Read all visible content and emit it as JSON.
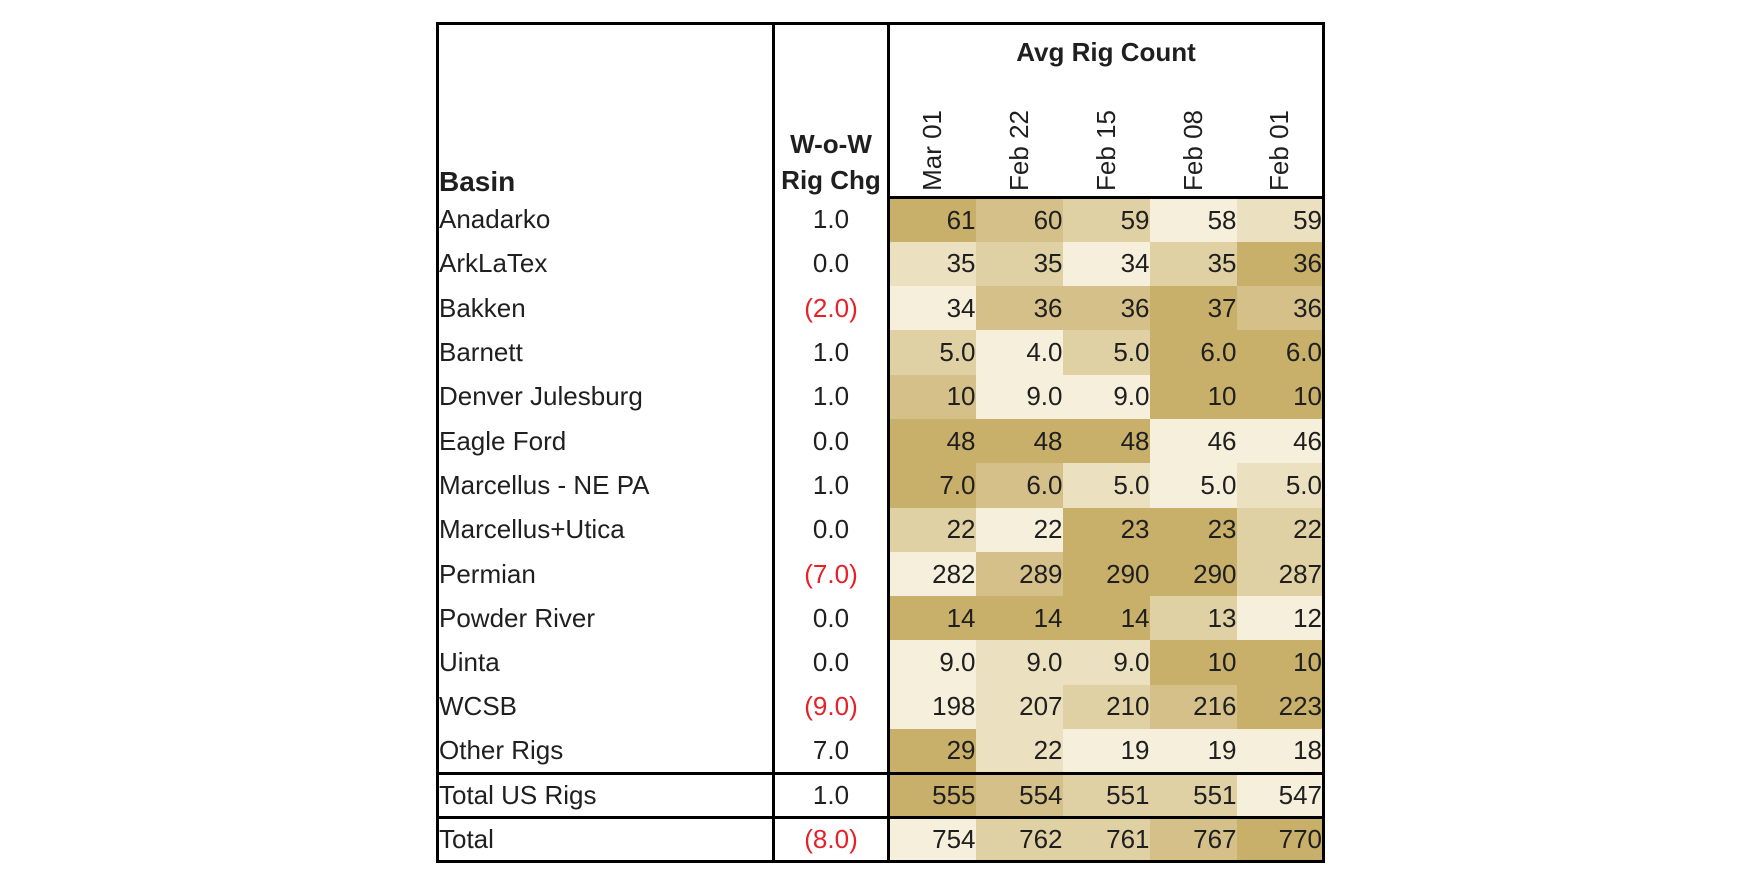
{
  "header": {
    "basin_label": "Basin",
    "change_label_line1": "W-o-W",
    "change_label_line2": "Rig Chg",
    "group_label": "Avg Rig Count",
    "dates": [
      "Mar 01",
      "Feb 22",
      "Feb 15",
      "Feb 08",
      "Feb 01"
    ]
  },
  "rows": [
    {
      "basin": "Anadarko",
      "change": "1.0",
      "negative": false,
      "values": [
        "61",
        "60",
        "59",
        "58",
        "59"
      ],
      "shades": [
        4,
        3,
        2,
        0,
        1
      ]
    },
    {
      "basin": "ArkLaTex",
      "change": "0.0",
      "negative": false,
      "values": [
        "35",
        "35",
        "34",
        "35",
        "36"
      ],
      "shades": [
        1,
        2,
        0,
        2,
        4
      ]
    },
    {
      "basin": "Bakken",
      "change": "(2.0)",
      "negative": true,
      "values": [
        "34",
        "36",
        "36",
        "37",
        "36"
      ],
      "shades": [
        0,
        3,
        3,
        4,
        3
      ]
    },
    {
      "basin": "Barnett",
      "change": "1.0",
      "negative": false,
      "values": [
        "5.0",
        "4.0",
        "5.0",
        "6.0",
        "6.0"
      ],
      "shades": [
        2,
        0,
        2,
        4,
        4
      ]
    },
    {
      "basin": "Denver Julesburg",
      "change": "1.0",
      "negative": false,
      "values": [
        "10",
        "9.0",
        "9.0",
        "10",
        "10"
      ],
      "shades": [
        3,
        0,
        0,
        4,
        4
      ]
    },
    {
      "basin": "Eagle Ford",
      "change": "0.0",
      "negative": false,
      "values": [
        "48",
        "48",
        "48",
        "46",
        "46"
      ],
      "shades": [
        4,
        4,
        4,
        0,
        0
      ]
    },
    {
      "basin": "Marcellus - NE PA",
      "change": "1.0",
      "negative": false,
      "values": [
        "7.0",
        "6.0",
        "5.0",
        "5.0",
        "5.0"
      ],
      "shades": [
        4,
        3,
        1,
        0,
        1
      ]
    },
    {
      "basin": "Marcellus+Utica",
      "change": "0.0",
      "negative": false,
      "values": [
        "22",
        "22",
        "23",
        "23",
        "22"
      ],
      "shades": [
        2,
        0,
        4,
        4,
        2
      ]
    },
    {
      "basin": "Permian",
      "change": "(7.0)",
      "negative": true,
      "values": [
        "282",
        "289",
        "290",
        "290",
        "287"
      ],
      "shades": [
        0,
        3,
        4,
        4,
        2
      ]
    },
    {
      "basin": "Powder River",
      "change": "0.0",
      "negative": false,
      "values": [
        "14",
        "14",
        "14",
        "13",
        "12"
      ],
      "shades": [
        4,
        4,
        4,
        2,
        0
      ]
    },
    {
      "basin": "Uinta",
      "change": "0.0",
      "negative": false,
      "values": [
        "9.0",
        "9.0",
        "9.0",
        "10",
        "10"
      ],
      "shades": [
        0,
        1,
        1,
        4,
        4
      ]
    },
    {
      "basin": "WCSB",
      "change": "(9.0)",
      "negative": true,
      "values": [
        "198",
        "207",
        "210",
        "216",
        "223"
      ],
      "shades": [
        0,
        1,
        2,
        3,
        4
      ]
    },
    {
      "basin": "Other Rigs",
      "change": "7.0",
      "negative": false,
      "values": [
        "29",
        "22",
        "19",
        "19",
        "18"
      ],
      "shades": [
        4,
        1,
        0,
        0,
        0
      ]
    }
  ],
  "totals": [
    {
      "basin": "Total US Rigs",
      "change": "1.0",
      "negative": false,
      "values": [
        "555",
        "554",
        "551",
        "551",
        "547"
      ],
      "shades": [
        4,
        3,
        2,
        2,
        0
      ]
    },
    {
      "basin": "Total",
      "change": "(8.0)",
      "negative": true,
      "values": [
        "754",
        "762",
        "761",
        "767",
        "770"
      ],
      "shades": [
        0,
        2,
        2,
        3,
        4
      ]
    }
  ],
  "heat_colors": [
    "#f5efdb",
    "#ebe0bf",
    "#e0d1a4",
    "#d4c088",
    "#c8b06b"
  ]
}
